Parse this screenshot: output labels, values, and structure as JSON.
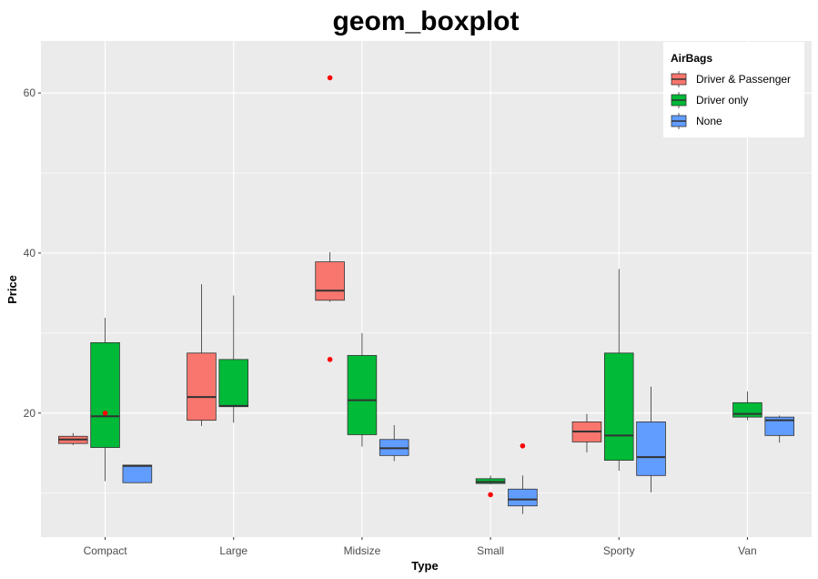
{
  "chart_data": {
    "type": "boxplot",
    "title": "geom_boxplot",
    "xlabel": "Type",
    "ylabel": "Price",
    "categories": [
      "Compact",
      "Large",
      "Midsize",
      "Small",
      "Sporty",
      "Van"
    ],
    "ylim": [
      4.5,
      66.5
    ],
    "yticks": [
      20,
      40,
      60
    ],
    "grid": true,
    "legend": {
      "title": "AirBags",
      "placement": "top-right",
      "entries": [
        "Driver & Passenger",
        "Driver only",
        "None"
      ]
    },
    "series": [
      {
        "name": "Driver & Passenger",
        "color": "#F8766D",
        "boxes": [
          {
            "category": "Compact",
            "whisker_low": 16.0,
            "q1": 16.2,
            "median": 16.7,
            "q3": 17.1,
            "whisker_high": 17.5,
            "outliers": []
          },
          {
            "category": "Large",
            "whisker_low": 18.4,
            "q1": 19.1,
            "median": 22.0,
            "q3": 27.5,
            "whisker_high": 36.1,
            "outliers": []
          },
          {
            "category": "Midsize",
            "whisker_low": 33.9,
            "q1": 34.1,
            "median": 35.3,
            "q3": 38.9,
            "whisker_high": 40.1,
            "outliers": [
              61.9,
              26.7
            ]
          },
          {
            "category": "Sporty",
            "whisker_low": 15.1,
            "q1": 16.4,
            "median": 17.7,
            "q3": 18.9,
            "whisker_high": 19.9,
            "outliers": []
          }
        ]
      },
      {
        "name": "Driver only",
        "color": "#00BA38",
        "boxes": [
          {
            "category": "Compact",
            "whisker_low": 11.5,
            "q1": 15.7,
            "median": 19.6,
            "q3": 28.8,
            "whisker_high": 31.9,
            "outliers": [
              20.0
            ]
          },
          {
            "category": "Large",
            "whisker_low": 18.8,
            "q1": 20.8,
            "median": 20.9,
            "q3": 26.7,
            "whisker_high": 34.7,
            "outliers": []
          },
          {
            "category": "Midsize",
            "whisker_low": 15.8,
            "q1": 17.3,
            "median": 21.6,
            "q3": 27.2,
            "whisker_high": 30.0,
            "outliers": []
          },
          {
            "category": "Small",
            "whisker_low": 11.1,
            "q1": 11.2,
            "median": 11.4,
            "q3": 11.8,
            "whisker_high": 12.2,
            "outliers": [
              9.8
            ]
          },
          {
            "category": "Sporty",
            "whisker_low": 12.8,
            "q1": 14.1,
            "median": 17.2,
            "q3": 27.5,
            "whisker_high": 38.0,
            "outliers": []
          },
          {
            "category": "Van",
            "whisker_low": 19.1,
            "q1": 19.5,
            "median": 19.9,
            "q3": 21.3,
            "whisker_high": 22.7,
            "outliers": []
          }
        ]
      },
      {
        "name": "None",
        "color": "#619CFF",
        "boxes": [
          {
            "category": "Compact",
            "whisker_low": 11.3,
            "q1": 11.3,
            "median": 13.4,
            "q3": 13.5,
            "whisker_high": 13.5,
            "outliers": []
          },
          {
            "category": "Midsize",
            "whisker_low": 14.0,
            "q1": 14.7,
            "median": 15.6,
            "q3": 16.7,
            "whisker_high": 18.5,
            "outliers": []
          },
          {
            "category": "Small",
            "whisker_low": 7.4,
            "q1": 8.4,
            "median": 9.2,
            "q3": 10.5,
            "whisker_high": 12.2,
            "outliers": [
              15.9
            ]
          },
          {
            "category": "Sporty",
            "whisker_low": 10.1,
            "q1": 12.2,
            "median": 14.5,
            "q3": 18.9,
            "whisker_high": 23.3,
            "outliers": []
          },
          {
            "category": "Van",
            "whisker_low": 16.3,
            "q1": 17.2,
            "median": 19.1,
            "q3": 19.5,
            "whisker_high": 19.7,
            "outliers": []
          }
        ]
      }
    ],
    "outlier_color": "#FF0000",
    "panel_color": "#EBEBEB",
    "grid_color": "#FFFFFF"
  }
}
